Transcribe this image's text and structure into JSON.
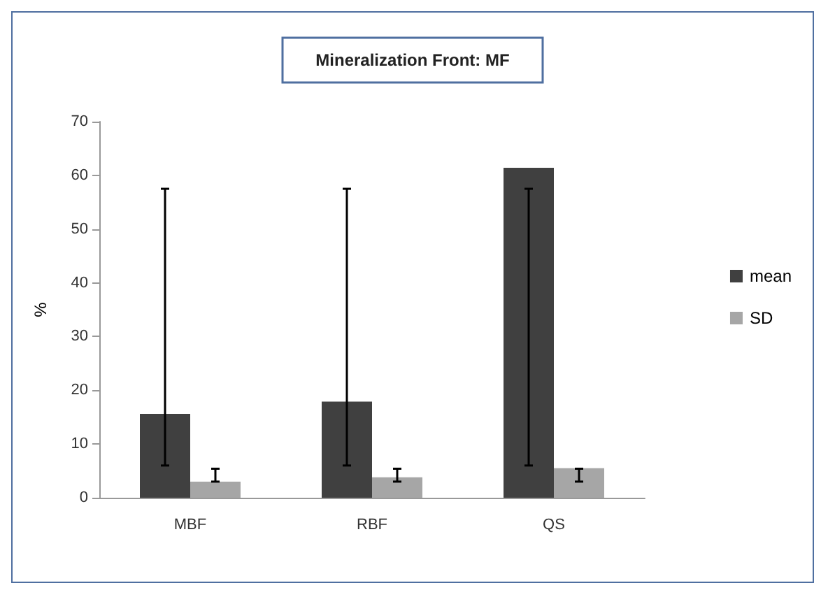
{
  "chart_data": {
    "type": "bar",
    "title": "Mineralization Front: MF",
    "ylabel": "%",
    "categories": [
      "MBF",
      "RBF",
      "QS"
    ],
    "series": [
      {
        "name": "mean",
        "color": "#404040",
        "values": [
          15.6,
          17.9,
          61.4
        ],
        "errors": [
          [
            6,
            57.5
          ],
          [
            6,
            57.5
          ],
          [
            6,
            57.5
          ]
        ]
      },
      {
        "name": "SD",
        "color": "#a6a6a6",
        "values": [
          3,
          3.8,
          5.5
        ],
        "errors": [
          [
            3,
            5.4
          ],
          [
            3,
            5.4
          ],
          [
            3,
            5.4
          ]
        ]
      }
    ],
    "ylim": [
      0,
      70
    ],
    "yticks": [
      0,
      10,
      20,
      30,
      40,
      50,
      60,
      70
    ],
    "grid": false,
    "legend": "right"
  }
}
